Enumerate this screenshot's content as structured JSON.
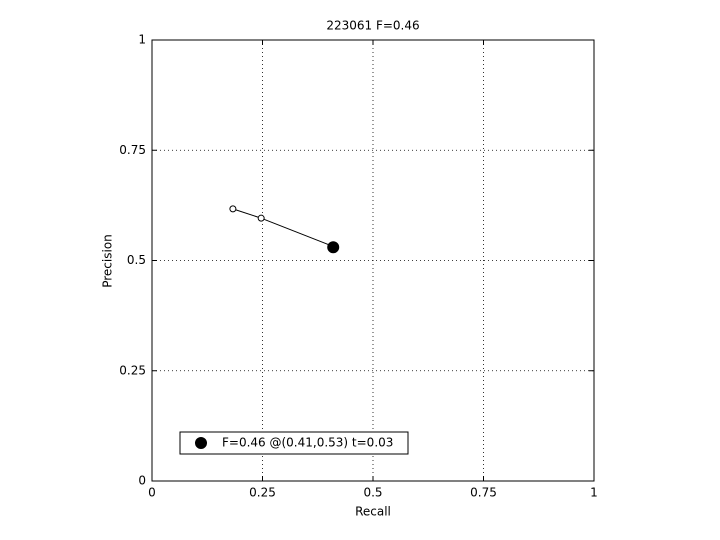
{
  "chart_data": {
    "type": "line",
    "title": "223061 F=0.46",
    "x_label": "Recall",
    "y_label": "Precision",
    "xlim": [
      0,
      1
    ],
    "ylim": [
      0,
      1
    ],
    "xticks": [
      0,
      0.25,
      0.5,
      0.75,
      1
    ],
    "yticks": [
      0,
      0.25,
      0.5,
      0.75,
      1
    ],
    "grid": true,
    "legend": "lower left",
    "series": [
      {
        "color": "#000000",
        "x": [
          0.183,
          0.247,
          0.407
        ],
        "values": [
          0.617,
          0.596,
          0.533
        ]
      },
      {
        "name": "F=0.46 @(0.41,0.53) t=0.03",
        "color": "#000000",
        "x": [
          0.41
        ],
        "values": [
          0.53
        ]
      }
    ]
  }
}
